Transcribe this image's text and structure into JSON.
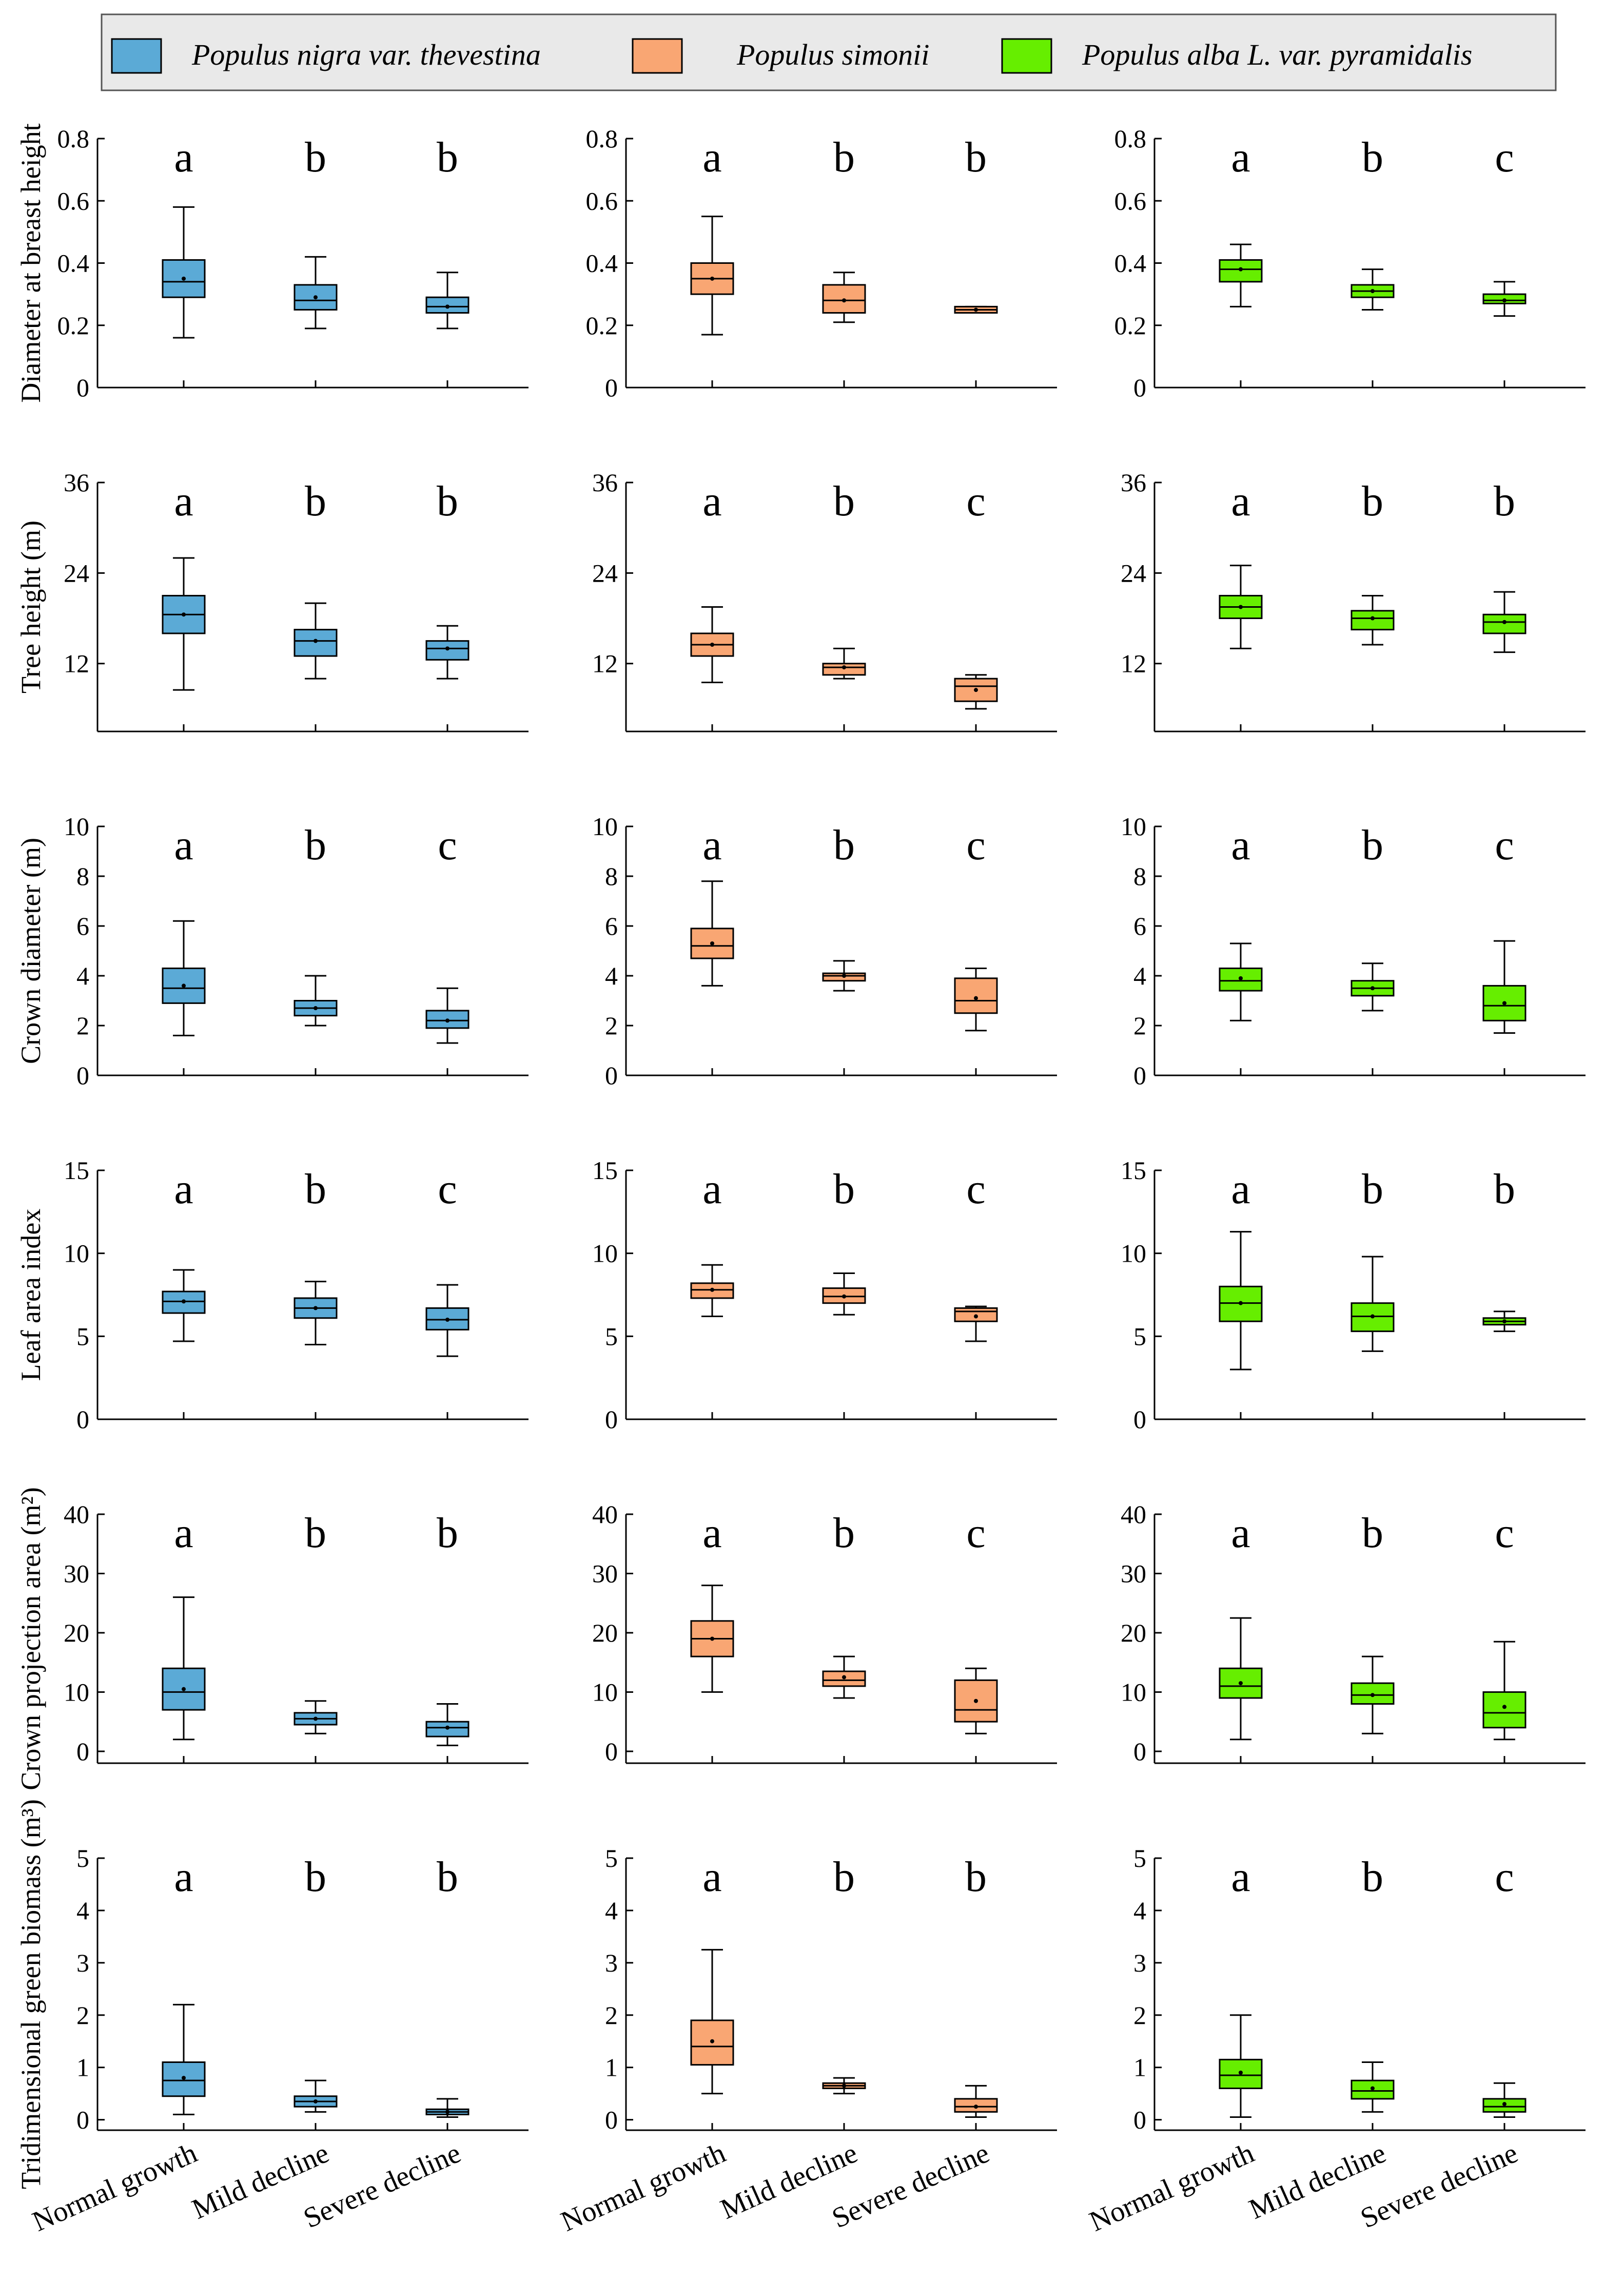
{
  "legend": [
    {
      "label": "Populus nigra var. thevestina",
      "color": "#5BAAD6"
    },
    {
      "label": "Populus simonii",
      "color": "#F9A673"
    },
    {
      "label": "Populus alba L. var. pyramidalis",
      "color": "#66EE00"
    }
  ],
  "categories": [
    "Normal growth",
    "Mild decline",
    "Severe decline"
  ],
  "chart_data": {
    "type": "box",
    "grid": false,
    "legend_position": "top",
    "categories": [
      "Normal growth",
      "Mild decline",
      "Severe decline"
    ],
    "species": [
      "Populus nigra var. thevestina",
      "Populus simonii",
      "Populus alba L. var. pyramidalis"
    ],
    "colors": [
      "#5BAAD6",
      "#F9A673",
      "#66EE00"
    ],
    "rows": [
      {
        "ylabel": "Diameter at breast height",
        "ylim": [
          0,
          0.8
        ],
        "ticks": [
          0,
          0.2,
          0.4,
          0.6,
          0.8
        ],
        "tick_labels": [
          "0",
          "0.2",
          "0.4",
          "0.6",
          "0.8"
        ],
        "panels": [
          {
            "letters": [
              "a",
              "b",
              "b"
            ],
            "boxes": [
              {
                "min": 0.16,
                "q1": 0.29,
                "median": 0.34,
                "q3": 0.41,
                "max": 0.58,
                "mean": 0.35
              },
              {
                "min": 0.19,
                "q1": 0.25,
                "median": 0.28,
                "q3": 0.33,
                "max": 0.42,
                "mean": 0.29
              },
              {
                "min": 0.19,
                "q1": 0.24,
                "median": 0.26,
                "q3": 0.29,
                "max": 0.37,
                "mean": 0.26
              }
            ]
          },
          {
            "letters": [
              "a",
              "b",
              "b"
            ],
            "boxes": [
              {
                "min": 0.17,
                "q1": 0.3,
                "median": 0.35,
                "q3": 0.4,
                "max": 0.55,
                "mean": 0.35
              },
              {
                "min": 0.21,
                "q1": 0.24,
                "median": 0.28,
                "q3": 0.33,
                "max": 0.37,
                "mean": 0.28
              },
              {
                "min": 0.24,
                "q1": 0.24,
                "median": 0.25,
                "q3": 0.26,
                "max": 0.26,
                "mean": 0.25
              }
            ]
          },
          {
            "letters": [
              "a",
              "b",
              "c"
            ],
            "boxes": [
              {
                "min": 0.26,
                "q1": 0.34,
                "median": 0.38,
                "q3": 0.41,
                "max": 0.46,
                "mean": 0.38
              },
              {
                "min": 0.25,
                "q1": 0.29,
                "median": 0.31,
                "q3": 0.33,
                "max": 0.38,
                "mean": 0.31
              },
              {
                "min": 0.23,
                "q1": 0.27,
                "median": 0.28,
                "q3": 0.3,
                "max": 0.34,
                "mean": 0.28
              }
            ]
          }
        ]
      },
      {
        "ylabel": "Tree height (m)",
        "ylim": [
          3,
          36
        ],
        "ticks": [
          12,
          24,
          36
        ],
        "tick_labels": [
          "12",
          "24",
          "36"
        ],
        "panels": [
          {
            "letters": [
              "a",
              "b",
              "b"
            ],
            "boxes": [
              {
                "min": 8.5,
                "q1": 16,
                "median": 18.5,
                "q3": 21,
                "max": 26,
                "mean": 18.5
              },
              {
                "min": 10,
                "q1": 13,
                "median": 15,
                "q3": 16.5,
                "max": 20,
                "mean": 15
              },
              {
                "min": 10,
                "q1": 12.5,
                "median": 14,
                "q3": 15,
                "max": 17,
                "mean": 14
              }
            ]
          },
          {
            "letters": [
              "a",
              "b",
              "c"
            ],
            "boxes": [
              {
                "min": 9.5,
                "q1": 13,
                "median": 14.5,
                "q3": 16,
                "max": 19.5,
                "mean": 14.5
              },
              {
                "min": 10,
                "q1": 10.5,
                "median": 11.5,
                "q3": 12,
                "max": 14,
                "mean": 11.5
              },
              {
                "min": 6,
                "q1": 7,
                "median": 9,
                "q3": 10,
                "max": 10.5,
                "mean": 8.5
              }
            ]
          },
          {
            "letters": [
              "a",
              "b",
              "b"
            ],
            "boxes": [
              {
                "min": 14,
                "q1": 18,
                "median": 19.5,
                "q3": 21,
                "max": 25,
                "mean": 19.5
              },
              {
                "min": 14.5,
                "q1": 16.5,
                "median": 18,
                "q3": 19,
                "max": 21,
                "mean": 18
              },
              {
                "min": 13.5,
                "q1": 16,
                "median": 17.5,
                "q3": 18.5,
                "max": 21.5,
                "mean": 17.5
              }
            ]
          }
        ]
      },
      {
        "ylabel": "Crown diameter (m)",
        "ylim": [
          0,
          10
        ],
        "ticks": [
          0,
          2,
          4,
          6,
          8,
          10
        ],
        "tick_labels": [
          "0",
          "2",
          "4",
          "6",
          "8",
          "10"
        ],
        "panels": [
          {
            "letters": [
              "a",
              "b",
              "c"
            ],
            "boxes": [
              {
                "min": 1.6,
                "q1": 2.9,
                "median": 3.5,
                "q3": 4.3,
                "max": 6.2,
                "mean": 3.6
              },
              {
                "min": 2.0,
                "q1": 2.4,
                "median": 2.7,
                "q3": 3.0,
                "max": 4.0,
                "mean": 2.7
              },
              {
                "min": 1.3,
                "q1": 1.9,
                "median": 2.2,
                "q3": 2.6,
                "max": 3.5,
                "mean": 2.2
              }
            ]
          },
          {
            "letters": [
              "a",
              "b",
              "c"
            ],
            "boxes": [
              {
                "min": 3.6,
                "q1": 4.7,
                "median": 5.2,
                "q3": 5.9,
                "max": 7.8,
                "mean": 5.3
              },
              {
                "min": 3.4,
                "q1": 3.8,
                "median": 4.0,
                "q3": 4.1,
                "max": 4.6,
                "mean": 4.0
              },
              {
                "min": 1.8,
                "q1": 2.5,
                "median": 3.0,
                "q3": 3.9,
                "max": 4.3,
                "mean": 3.1
              }
            ]
          },
          {
            "letters": [
              "a",
              "b",
              "c"
            ],
            "boxes": [
              {
                "min": 2.2,
                "q1": 3.4,
                "median": 3.8,
                "q3": 4.3,
                "max": 5.3,
                "mean": 3.9
              },
              {
                "min": 2.6,
                "q1": 3.2,
                "median": 3.5,
                "q3": 3.8,
                "max": 4.5,
                "mean": 3.5
              },
              {
                "min": 1.7,
                "q1": 2.2,
                "median": 2.8,
                "q3": 3.6,
                "max": 5.4,
                "mean": 2.9
              }
            ]
          }
        ]
      },
      {
        "ylabel": "Leaf area index",
        "ylim": [
          0,
          15
        ],
        "ticks": [
          0,
          5,
          10,
          15
        ],
        "tick_labels": [
          "0",
          "5",
          "10",
          "15"
        ],
        "panels": [
          {
            "letters": [
              "a",
              "b",
              "c"
            ],
            "boxes": [
              {
                "min": 4.7,
                "q1": 6.4,
                "median": 7.1,
                "q3": 7.7,
                "max": 9.0,
                "mean": 7.1
              },
              {
                "min": 4.5,
                "q1": 6.1,
                "median": 6.7,
                "q3": 7.3,
                "max": 8.3,
                "mean": 6.7
              },
              {
                "min": 3.8,
                "q1": 5.4,
                "median": 6.0,
                "q3": 6.7,
                "max": 8.1,
                "mean": 6.0
              }
            ]
          },
          {
            "letters": [
              "a",
              "b",
              "c"
            ],
            "boxes": [
              {
                "min": 6.2,
                "q1": 7.3,
                "median": 7.8,
                "q3": 8.2,
                "max": 9.3,
                "mean": 7.8
              },
              {
                "min": 6.3,
                "q1": 7.0,
                "median": 7.4,
                "q3": 7.9,
                "max": 8.8,
                "mean": 7.4
              },
              {
                "min": 4.7,
                "q1": 5.9,
                "median": 6.5,
                "q3": 6.7,
                "max": 6.8,
                "mean": 6.2
              }
            ]
          },
          {
            "letters": [
              "a",
              "b",
              "b"
            ],
            "boxes": [
              {
                "min": 3.0,
                "q1": 5.9,
                "median": 7.0,
                "q3": 8.0,
                "max": 11.3,
                "mean": 7.0
              },
              {
                "min": 4.1,
                "q1": 5.3,
                "median": 6.2,
                "q3": 7.0,
                "max": 9.8,
                "mean": 6.2
              },
              {
                "min": 5.3,
                "q1": 5.7,
                "median": 5.9,
                "q3": 6.1,
                "max": 6.5,
                "mean": 5.9
              }
            ]
          }
        ]
      },
      {
        "ylabel": "Crown projection area (m²)",
        "ylim": [
          -2,
          40
        ],
        "ticks": [
          0,
          10,
          20,
          30,
          40
        ],
        "tick_labels": [
          "0",
          "10",
          "20",
          "30",
          "40"
        ],
        "panels": [
          {
            "letters": [
              "a",
              "b",
              "b"
            ],
            "boxes": [
              {
                "min": 2,
                "q1": 7,
                "median": 10,
                "q3": 14,
                "max": 26,
                "mean": 10.5
              },
              {
                "min": 3,
                "q1": 4.5,
                "median": 5.5,
                "q3": 6.5,
                "max": 8.5,
                "mean": 5.5
              },
              {
                "min": 1,
                "q1": 2.5,
                "median": 4,
                "q3": 5,
                "max": 8,
                "mean": 4
              }
            ]
          },
          {
            "letters": [
              "a",
              "b",
              "c"
            ],
            "boxes": [
              {
                "min": 10,
                "q1": 16,
                "median": 19,
                "q3": 22,
                "max": 28,
                "mean": 19
              },
              {
                "min": 9,
                "q1": 11,
                "median": 12,
                "q3": 13.5,
                "max": 16,
                "mean": 12.5
              },
              {
                "min": 3,
                "q1": 5,
                "median": 7,
                "q3": 12,
                "max": 14,
                "mean": 8.5
              }
            ]
          },
          {
            "letters": [
              "a",
              "b",
              "c"
            ],
            "boxes": [
              {
                "min": 2,
                "q1": 9,
                "median": 11,
                "q3": 14,
                "max": 22.5,
                "mean": 11.5
              },
              {
                "min": 3,
                "q1": 8,
                "median": 9.5,
                "q3": 11.5,
                "max": 16,
                "mean": 9.5
              },
              {
                "min": 2,
                "q1": 4,
                "median": 6.5,
                "q3": 10,
                "max": 18.5,
                "mean": 7.5
              }
            ]
          }
        ]
      },
      {
        "ylabel": "Tridimensional green biomass (m³)",
        "ylim": [
          -0.2,
          5
        ],
        "ticks": [
          0,
          1,
          2,
          3,
          4,
          5
        ],
        "tick_labels": [
          "0",
          "1",
          "2",
          "3",
          "4",
          "5"
        ],
        "panels": [
          {
            "letters": [
              "a",
              "b",
              "b"
            ],
            "boxes": [
              {
                "min": 0.1,
                "q1": 0.45,
                "median": 0.75,
                "q3": 1.1,
                "max": 2.2,
                "mean": 0.8
              },
              {
                "min": 0.15,
                "q1": 0.25,
                "median": 0.35,
                "q3": 0.45,
                "max": 0.75,
                "mean": 0.35
              },
              {
                "min": 0.05,
                "q1": 0.1,
                "median": 0.15,
                "q3": 0.2,
                "max": 0.4,
                "mean": 0.15
              }
            ]
          },
          {
            "letters": [
              "a",
              "b",
              "b"
            ],
            "boxes": [
              {
                "min": 0.5,
                "q1": 1.05,
                "median": 1.4,
                "q3": 1.9,
                "max": 3.25,
                "mean": 1.5
              },
              {
                "min": 0.5,
                "q1": 0.6,
                "median": 0.65,
                "q3": 0.7,
                "max": 0.8,
                "mean": 0.65
              },
              {
                "min": 0.05,
                "q1": 0.15,
                "median": 0.25,
                "q3": 0.4,
                "max": 0.65,
                "mean": 0.25
              }
            ]
          },
          {
            "letters": [
              "a",
              "b",
              "c"
            ],
            "boxes": [
              {
                "min": 0.05,
                "q1": 0.6,
                "median": 0.85,
                "q3": 1.15,
                "max": 2.0,
                "mean": 0.9
              },
              {
                "min": 0.15,
                "q1": 0.4,
                "median": 0.55,
                "q3": 0.75,
                "max": 1.1,
                "mean": 0.6
              },
              {
                "min": 0.05,
                "q1": 0.15,
                "median": 0.25,
                "q3": 0.4,
                "max": 0.7,
                "mean": 0.3
              }
            ]
          }
        ]
      }
    ]
  }
}
